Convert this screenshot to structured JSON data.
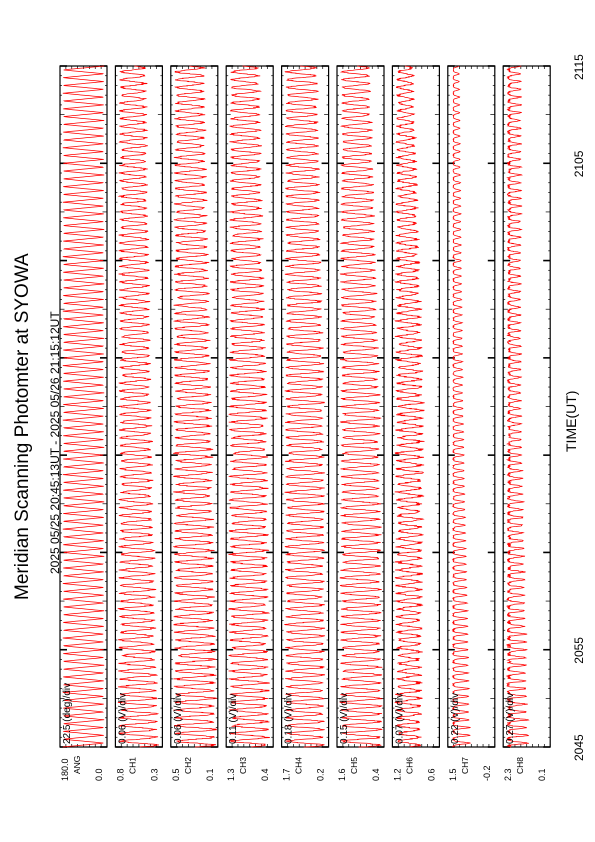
{
  "title": "Meridian Scanning Photomter at SYOWA",
  "subtitle": "2025 05/25 20:45:13UT - 2025 05/26 21:15:12UT",
  "chart_data": {
    "type": "line",
    "xlabel": "TIME(UT)",
    "xlim": [
      2045,
      2115
    ],
    "x_ticks": [
      "2045",
      "2055",
      "2105",
      "2115"
    ],
    "line_color": "#ff0000",
    "panels": [
      {
        "name": "ANG",
        "scale": "22.5 (deg)/div",
        "ylim": [
          0.0,
          180.0
        ],
        "y_labels": [
          "0.0",
          "180.0"
        ],
        "signal": "scan",
        "period_min": 0.8
      },
      {
        "name": "CH1",
        "scale": "0.06 (V)/div",
        "ylim": [
          0.3,
          0.8
        ],
        "y_labels": [
          "0.3",
          "0.8"
        ],
        "signal": "osc",
        "amplitude": [
          0.75,
          0.6,
          0.5
        ],
        "noise": 0.1
      },
      {
        "name": "CH2",
        "scale": "0.06 (V)/div",
        "ylim": [
          0.1,
          0.5
        ],
        "y_labels": [
          "0.1",
          "0.5"
        ],
        "signal": "osc",
        "amplitude": [
          0.8,
          0.7,
          0.55
        ],
        "noise": 0.1
      },
      {
        "name": "CH3",
        "scale": "0.11 (V)/div",
        "ylim": [
          0.4,
          1.3
        ],
        "y_labels": [
          "0.4",
          "1.3"
        ],
        "signal": "osc",
        "amplitude": [
          0.75,
          0.7,
          0.55
        ],
        "noise": 0.1
      },
      {
        "name": "CH4",
        "scale": "0.18 (V)/div",
        "ylim": [
          0.2,
          1.7
        ],
        "y_labels": [
          "0.2",
          "1.7"
        ],
        "signal": "osc",
        "amplitude": [
          0.75,
          0.75,
          0.6
        ],
        "noise": 0.08
      },
      {
        "name": "CH5",
        "scale": "0.15 (V)/div",
        "ylim": [
          0.4,
          1.6
        ],
        "y_labels": [
          "0.4",
          "1.6"
        ],
        "signal": "osc",
        "amplitude": [
          0.8,
          0.75,
          0.55
        ],
        "noise": 0.08
      },
      {
        "name": "CH6",
        "scale": "0.07 (V)/div",
        "ylim": [
          0.6,
          1.2
        ],
        "y_labels": [
          "0.6",
          "1.2"
        ],
        "signal": "osc",
        "amplitude": [
          0.45,
          0.5,
          0.3
        ],
        "noise": 0.15
      },
      {
        "name": "CH7",
        "scale": "0.22 (V)/div",
        "ylim": [
          -0.2,
          1.5
        ],
        "y_labels": [
          "-0.2",
          "1.5"
        ],
        "signal": "spiky",
        "amplitude": [
          0.35,
          0.2,
          0.12
        ],
        "noise": 0.05
      },
      {
        "name": "CH8",
        "scale": "0.27 (V)/div",
        "ylim": [
          0.1,
          2.3
        ],
        "y_labels": [
          "0.1",
          "2.3"
        ],
        "signal": "spiky",
        "amplitude": [
          0.4,
          0.25,
          0.25
        ],
        "noise": 0.12
      }
    ]
  }
}
